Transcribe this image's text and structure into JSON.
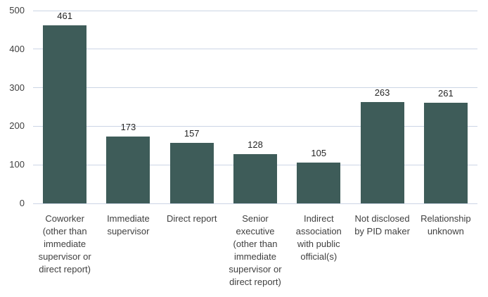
{
  "chart_data": {
    "type": "bar",
    "title": "",
    "xlabel": "",
    "ylabel": "",
    "categories": [
      "Coworker (other than immediate supervisor or direct report)",
      "Immediate supervisor",
      "Direct report",
      "Senior executive (other than immediate supervisor or direct report)",
      "Indirect association with public official(s)",
      "Not disclosed by PID maker",
      "Relationship unknown"
    ],
    "values": [
      461,
      173,
      157,
      128,
      105,
      263,
      261
    ],
    "value_labels_shown": true,
    "ylim": [
      0,
      500
    ],
    "yticks": [
      0,
      100,
      200,
      300,
      400,
      500
    ],
    "grid": true,
    "legend_shown": false,
    "bar_color": "#3e5c59",
    "gridline_color": "#ccd5e5",
    "text_color": "#404040",
    "background_color": "#ffffff"
  }
}
